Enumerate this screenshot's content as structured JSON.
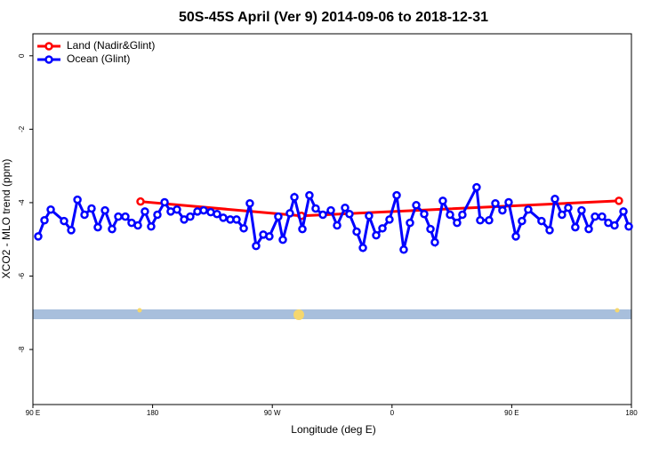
{
  "chart_data": {
    "type": "line",
    "title": "50S-45S April (Ver 9)   2014-09-06 to 2018-12-31",
    "x_label": "Longitude (deg E)",
    "y_label": "XCO2 - MLO trend (ppm)",
    "xlim": [
      90,
      540
    ],
    "ylim": [
      -9.5,
      0.6
    ],
    "xticks": [
      {
        "value": 90,
        "label": "90 E"
      },
      180,
      {
        "value": 270,
        "label": "90 W"
      },
      {
        "value": 360,
        "label": "0"
      },
      {
        "value": 450,
        "label": "90 E"
      },
      {
        "value": 540,
        "label": "180"
      }
    ],
    "yticks": [
      0,
      -2,
      -4,
      -6,
      -8
    ],
    "legend": "top-left",
    "series": [
      {
        "name": "Land (Nadir&Glint)",
        "color": "#ff0000",
        "x": [
          170.9,
          291.9,
          530.6
        ],
        "values": [
          -3.97,
          -4.36,
          -3.95
        ]
      },
      {
        "name": "Ocean (Glint)",
        "color": "#0000ff",
        "x": [
          94.0,
          98.7,
          103.4,
          113.4,
          118.8,
          123.5,
          128.8,
          134.1,
          138.8,
          144.2,
          149.5,
          154.2,
          159.5,
          164.2,
          168.9,
          174.2,
          178.9,
          183.6,
          189.0,
          193.6,
          198.3,
          203.7,
          208.3,
          213.7,
          218.4,
          223.7,
          228.4,
          233.1,
          238.4,
          243.1,
          248.5,
          253.1,
          257.8,
          263.2,
          267.8,
          274.5,
          277.9,
          283.2,
          286.6,
          292.6,
          297.9,
          302.6,
          308.0,
          314.0,
          318.7,
          324.7,
          328.0,
          333.4,
          338.1,
          342.7,
          348.1,
          352.8,
          358.1,
          363.5,
          368.8,
          373.5,
          378.2,
          384.2,
          388.9,
          392.2,
          398.2,
          403.6,
          408.9,
          412.9,
          423.6,
          426.3,
          433.0,
          437.7,
          443.0,
          447.7,
          453.1,
          457.7,
          462.4,
          472.4,
          478.5,
          482.5,
          487.8,
          492.5,
          497.8,
          502.5,
          507.9,
          512.6,
          517.9,
          522.6,
          527.3,
          534.0,
          538.0
        ],
        "values": [
          -4.92,
          -4.48,
          -4.19,
          -4.5,
          -4.75,
          -3.92,
          -4.33,
          -4.16,
          -4.67,
          -4.21,
          -4.72,
          -4.38,
          -4.38,
          -4.55,
          -4.62,
          -4.24,
          -4.65,
          -4.33,
          -3.99,
          -4.24,
          -4.19,
          -4.46,
          -4.38,
          -4.24,
          -4.21,
          -4.26,
          -4.31,
          -4.41,
          -4.46,
          -4.46,
          -4.7,
          -4.02,
          -5.18,
          -4.87,
          -4.92,
          -4.38,
          -5.01,
          -4.29,
          -3.85,
          -4.72,
          -3.8,
          -4.16,
          -4.33,
          -4.21,
          -4.62,
          -4.14,
          -4.31,
          -4.79,
          -5.23,
          -4.36,
          -4.89,
          -4.7,
          -4.46,
          -3.8,
          -5.28,
          -4.55,
          -4.07,
          -4.31,
          -4.72,
          -5.08,
          -3.95,
          -4.33,
          -4.55,
          -4.33,
          -3.58,
          -4.48,
          -4.48,
          -4.02,
          -4.21,
          -3.99,
          -4.92,
          -4.5,
          -4.19,
          -4.5,
          -4.75,
          -3.9,
          -4.33,
          -4.14,
          -4.67,
          -4.21,
          -4.72,
          -4.38,
          -4.38,
          -4.55,
          -4.62,
          -4.24,
          -4.65
        ]
      }
    ]
  }
}
